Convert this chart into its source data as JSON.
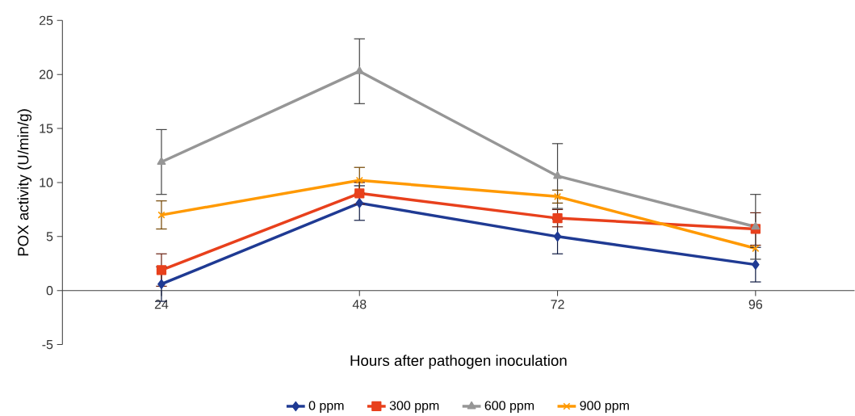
{
  "chart_data": {
    "type": "line",
    "xlabel": "Hours after pathogen inoculation",
    "ylabel": "POX activity (U/min/g)",
    "categories": [
      "24",
      "48",
      "72",
      "96"
    ],
    "series": [
      {
        "name": "0 ppm",
        "color": "#1f3a93",
        "marker": "diamond",
        "values": [
          0.6,
          8.1,
          5.0,
          2.4
        ],
        "errors": [
          1.6,
          1.6,
          1.6,
          1.6
        ]
      },
      {
        "name": "300 ppm",
        "color": "#e8401c",
        "marker": "square",
        "values": [
          1.9,
          9.0,
          6.7,
          5.7
        ],
        "errors": [
          1.5,
          1.0,
          0.8,
          1.5
        ]
      },
      {
        "name": "600 ppm",
        "color": "#969696",
        "marker": "triangle",
        "values": [
          11.9,
          20.3,
          10.6,
          5.9
        ],
        "errors": [
          3.0,
          3.0,
          3.0,
          3.0
        ]
      },
      {
        "name": "900 ppm",
        "color": "#ff9900",
        "marker": "cross",
        "values": [
          7.0,
          10.2,
          8.7,
          3.9
        ],
        "errors": [
          1.3,
          1.2,
          0.6,
          null
        ]
      }
    ],
    "ylim": [
      -5,
      25
    ],
    "yticks": [
      -5,
      0,
      5,
      10,
      15,
      20,
      25
    ],
    "grid": false,
    "legend": "bottom"
  }
}
